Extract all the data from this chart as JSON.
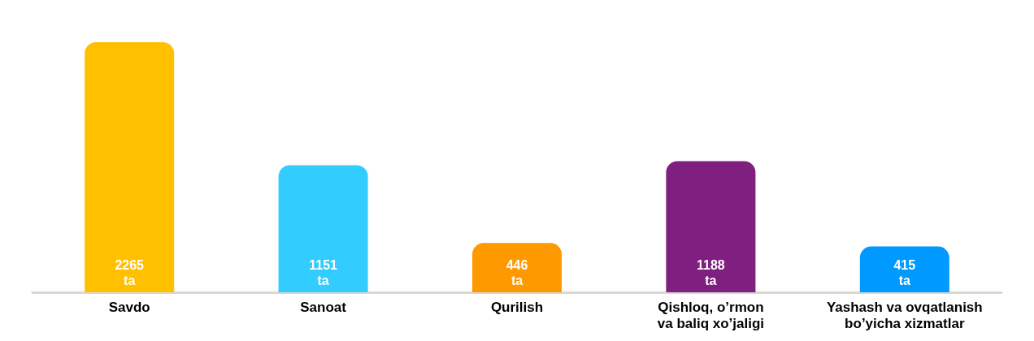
{
  "chart_data": {
    "type": "bar",
    "categories": [
      "Savdo",
      "Sanoat",
      "Qurilish",
      "Qishloq, o’rmon\nva baliq xo’jaligi",
      "Yashash va ovqatlanish\nbo’yicha xizmatlar"
    ],
    "values": [
      2265,
      1151,
      446,
      1188,
      415
    ],
    "colors": [
      "#ffc000",
      "#33ccff",
      "#ff9900",
      "#7f1f7f",
      "#0099ff"
    ],
    "value_labels": [
      "2265\nta",
      "1151\nta",
      "446\nta",
      "1188\nta",
      "415\nta"
    ]
  }
}
